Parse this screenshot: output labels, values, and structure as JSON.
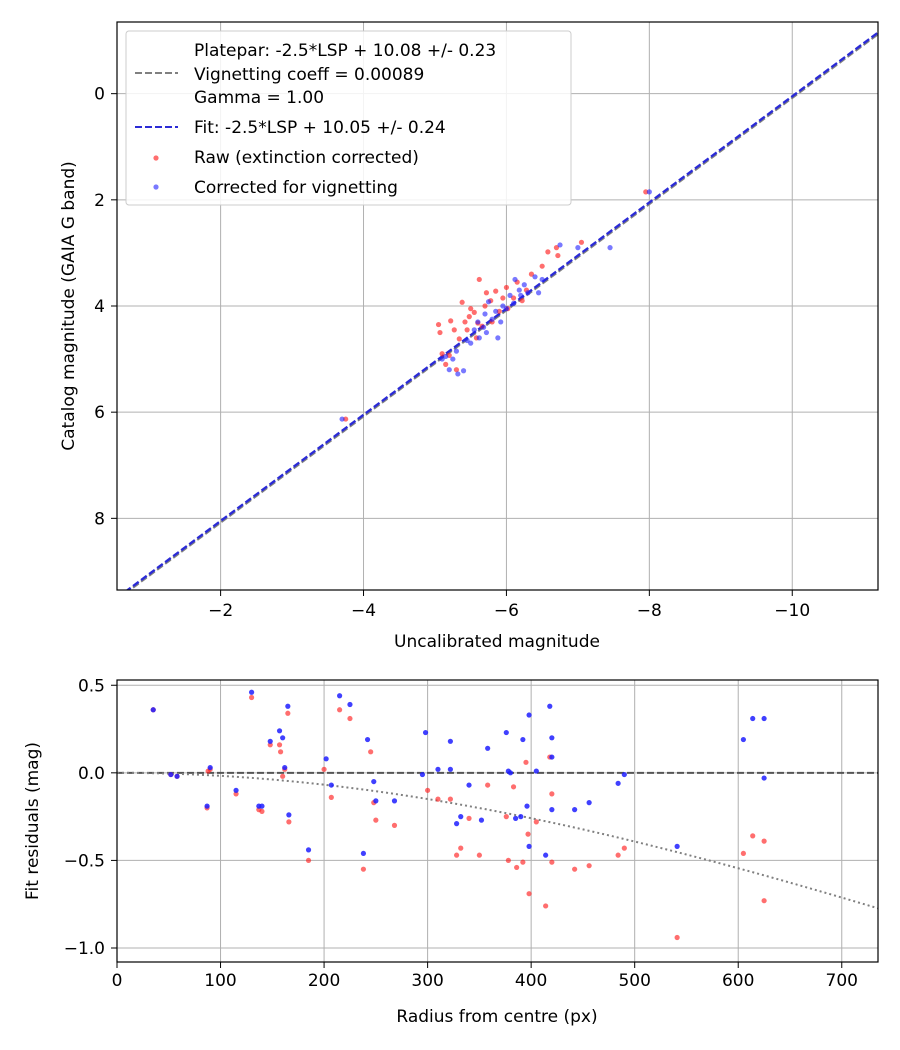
{
  "chart_data": [
    {
      "type": "scatter",
      "xlabel": "Uncalibrated magnitude",
      "ylabel": "Catalog magnitude (GAIA G band)",
      "xlim": [
        -0.55,
        -11.2
      ],
      "ylim": [
        9.35,
        -1.35
      ],
      "x_ticks": [
        -2,
        -4,
        -6,
        -8,
        -10
      ],
      "x_tick_labels": [
        "−2",
        "−4",
        "−6",
        "−8",
        "−10"
      ],
      "y_ticks": [
        0,
        2,
        4,
        6,
        8
      ],
      "y_tick_labels": [
        "0",
        "2",
        "4",
        "6",
        "8"
      ],
      "grid": true,
      "legend_position": "top-left",
      "legend": {
        "platepar_lines": [
          "Platepar: -2.5*LSP + 10.08 +/- 0.23",
          "Vignetting coeff = 0.00089",
          "Gamma = 1.00"
        ],
        "fit_label": "Fit: -2.5*LSP + 10.05 +/- 0.24",
        "raw_label": "Raw (extinction corrected)",
        "corrected_label": "Corrected for vignetting"
      },
      "colors": {
        "platepar": "#808080",
        "fit": "#2b2bd6",
        "raw": "#ff2020",
        "corrected": "#1f1fff"
      },
      "platepar_line": {
        "slope": 1.0,
        "intercept": 10.08
      },
      "fit_line": {
        "slope": 1.0,
        "intercept": 10.05
      },
      "series": [
        {
          "name": "Raw (extinction corrected)",
          "points": [
            [
              -3.75,
              6.13
            ],
            [
              -5.05,
              4.35
            ],
            [
              -5.07,
              4.5
            ],
            [
              -5.1,
              4.9
            ],
            [
              -5.15,
              5.1
            ],
            [
              -5.2,
              4.93
            ],
            [
              -5.22,
              4.28
            ],
            [
              -5.27,
              4.45
            ],
            [
              -5.3,
              5.2
            ],
            [
              -5.34,
              4.62
            ],
            [
              -5.38,
              3.93
            ],
            [
              -5.42,
              4.3
            ],
            [
              -5.45,
              4.45
            ],
            [
              -5.48,
              4.2
            ],
            [
              -5.5,
              4.05
            ],
            [
              -5.55,
              4.12
            ],
            [
              -5.58,
              4.6
            ],
            [
              -5.6,
              4.32
            ],
            [
              -5.62,
              3.5
            ],
            [
              -5.66,
              4.38
            ],
            [
              -5.7,
              4.0
            ],
            [
              -5.72,
              3.75
            ],
            [
              -5.78,
              3.9
            ],
            [
              -5.8,
              4.3
            ],
            [
              -5.85,
              3.72
            ],
            [
              -5.9,
              4.1
            ],
            [
              -5.95,
              3.85
            ],
            [
              -6.0,
              3.65
            ],
            [
              -6.02,
              4.05
            ],
            [
              -6.1,
              3.85
            ],
            [
              -6.15,
              3.55
            ],
            [
              -6.22,
              3.9
            ],
            [
              -6.28,
              3.7
            ],
            [
              -6.35,
              3.4
            ],
            [
              -6.5,
              3.25
            ],
            [
              -6.58,
              2.98
            ],
            [
              -6.7,
              2.9
            ],
            [
              -6.72,
              3.05
            ],
            [
              -7.05,
              2.8
            ],
            [
              -7.95,
              1.85
            ]
          ]
        },
        {
          "name": "Corrected for vignetting",
          "points": [
            [
              -3.7,
              6.13
            ],
            [
              -5.1,
              5.0
            ],
            [
              -5.15,
              4.95
            ],
            [
              -5.2,
              5.2
            ],
            [
              -5.25,
              5.0
            ],
            [
              -5.3,
              4.85
            ],
            [
              -5.32,
              5.28
            ],
            [
              -5.4,
              5.22
            ],
            [
              -5.45,
              4.65
            ],
            [
              -5.5,
              4.7
            ],
            [
              -5.55,
              4.45
            ],
            [
              -5.6,
              4.3
            ],
            [
              -5.62,
              4.6
            ],
            [
              -5.68,
              4.4
            ],
            [
              -5.7,
              4.15
            ],
            [
              -5.72,
              4.5
            ],
            [
              -5.75,
              3.92
            ],
            [
              -5.8,
              4.25
            ],
            [
              -5.85,
              4.1
            ],
            [
              -5.88,
              4.6
            ],
            [
              -5.92,
              4.3
            ],
            [
              -5.95,
              4.0
            ],
            [
              -6.0,
              4.05
            ],
            [
              -6.05,
              3.8
            ],
            [
              -6.1,
              3.95
            ],
            [
              -6.12,
              3.5
            ],
            [
              -6.18,
              3.7
            ],
            [
              -6.2,
              3.8
            ],
            [
              -6.25,
              3.6
            ],
            [
              -6.3,
              3.75
            ],
            [
              -6.4,
              3.45
            ],
            [
              -6.45,
              3.75
            ],
            [
              -6.5,
              3.5
            ],
            [
              -6.75,
              2.85
            ],
            [
              -7.0,
              2.9
            ],
            [
              -7.45,
              2.9
            ],
            [
              -8.0,
              1.85
            ]
          ]
        }
      ]
    },
    {
      "type": "scatter",
      "xlabel": "Radius from centre (px)",
      "ylabel": "Fit residuals (mag)",
      "xlim": [
        0,
        735
      ],
      "ylim": [
        -1.08,
        0.53
      ],
      "x_ticks": [
        0,
        100,
        200,
        300,
        400,
        500,
        600,
        700
      ],
      "x_tick_labels": [
        "0",
        "100",
        "200",
        "300",
        "400",
        "500",
        "600",
        "700"
      ],
      "y_ticks": [
        0.5,
        0.0,
        -0.5,
        -1.0
      ],
      "y_tick_labels": [
        "0.5",
        "0.0",
        "−0.5",
        "−1.0"
      ],
      "grid": true,
      "zero_line": 0.0,
      "vignetting_curve": {
        "coeff": 0.00089
      },
      "colors": {
        "raw": "#ff2020",
        "corrected": "#1f1fff",
        "zero": "#555555",
        "curve": "#808080"
      },
      "series": [
        {
          "name": "Raw (extinction corrected)",
          "points": [
            [
              35,
              0.36
            ],
            [
              52,
              -0.01
            ],
            [
              58,
              -0.02
            ],
            [
              87,
              -0.2
            ],
            [
              88,
              0.01
            ],
            [
              90,
              0.02
            ],
            [
              115,
              -0.12
            ],
            [
              130,
              0.43
            ],
            [
              137,
              -0.21
            ],
            [
              140,
              -0.22
            ],
            [
              148,
              0.16
            ],
            [
              157,
              0.16
            ],
            [
              158,
              0.12
            ],
            [
              160,
              -0.02
            ],
            [
              162,
              0.02
            ],
            [
              165,
              0.34
            ],
            [
              166,
              -0.28
            ],
            [
              185,
              -0.5
            ],
            [
              200,
              0.02
            ],
            [
              207,
              -0.14
            ],
            [
              215,
              0.36
            ],
            [
              225,
              0.31
            ],
            [
              238,
              -0.55
            ],
            [
              245,
              0.12
            ],
            [
              248,
              -0.17
            ],
            [
              250,
              -0.27
            ],
            [
              268,
              -0.3
            ],
            [
              300,
              -0.1
            ],
            [
              310,
              -0.15
            ],
            [
              322,
              -0.15
            ],
            [
              328,
              -0.47
            ],
            [
              332,
              -0.43
            ],
            [
              340,
              -0.26
            ],
            [
              350,
              -0.47
            ],
            [
              358,
              -0.07
            ],
            [
              376,
              -0.25
            ],
            [
              378,
              -0.5
            ],
            [
              383,
              -0.08
            ],
            [
              386,
              -0.54
            ],
            [
              392,
              -0.51
            ],
            [
              395,
              0.06
            ],
            [
              397,
              -0.35
            ],
            [
              398,
              -0.69
            ],
            [
              405,
              -0.28
            ],
            [
              414,
              -0.76
            ],
            [
              418,
              0.09
            ],
            [
              420,
              -0.12
            ],
            [
              420,
              -0.51
            ],
            [
              442,
              -0.55
            ],
            [
              456,
              -0.53
            ],
            [
              484,
              -0.47
            ],
            [
              490,
              -0.43
            ],
            [
              541,
              -0.94
            ],
            [
              605,
              -0.46
            ],
            [
              614,
              -0.36
            ],
            [
              625,
              -0.39
            ],
            [
              625,
              -0.73
            ]
          ]
        },
        {
          "name": "Corrected for vignetting",
          "points": [
            [
              35,
              0.36
            ],
            [
              52,
              -0.01
            ],
            [
              58,
              -0.02
            ],
            [
              87,
              -0.19
            ],
            [
              90,
              0.03
            ],
            [
              115,
              -0.1
            ],
            [
              130,
              0.46
            ],
            [
              137,
              -0.19
            ],
            [
              140,
              -0.19
            ],
            [
              148,
              0.18
            ],
            [
              157,
              0.24
            ],
            [
              160,
              0.2
            ],
            [
              162,
              0.03
            ],
            [
              165,
              0.38
            ],
            [
              166,
              -0.24
            ],
            [
              185,
              -0.44
            ],
            [
              202,
              0.08
            ],
            [
              207,
              -0.07
            ],
            [
              215,
              0.44
            ],
            [
              225,
              0.39
            ],
            [
              238,
              -0.46
            ],
            [
              242,
              0.19
            ],
            [
              248,
              -0.05
            ],
            [
              250,
              -0.16
            ],
            [
              268,
              -0.16
            ],
            [
              295,
              -0.01
            ],
            [
              298,
              0.23
            ],
            [
              310,
              0.02
            ],
            [
              322,
              0.18
            ],
            [
              322,
              0.02
            ],
            [
              328,
              -0.29
            ],
            [
              332,
              -0.25
            ],
            [
              340,
              -0.07
            ],
            [
              352,
              -0.27
            ],
            [
              358,
              0.14
            ],
            [
              376,
              0.23
            ],
            [
              378,
              0.01
            ],
            [
              380,
              0.0
            ],
            [
              385,
              -0.26
            ],
            [
              390,
              -0.25
            ],
            [
              392,
              0.19
            ],
            [
              396,
              -0.19
            ],
            [
              398,
              0.33
            ],
            [
              398,
              -0.42
            ],
            [
              405,
              0.01
            ],
            [
              414,
              -0.47
            ],
            [
              418,
              0.38
            ],
            [
              420,
              0.2
            ],
            [
              420,
              0.09
            ],
            [
              420,
              -0.21
            ],
            [
              442,
              -0.21
            ],
            [
              456,
              -0.17
            ],
            [
              484,
              -0.06
            ],
            [
              490,
              -0.01
            ],
            [
              541,
              -0.42
            ],
            [
              605,
              0.19
            ],
            [
              614,
              0.31
            ],
            [
              625,
              0.31
            ],
            [
              625,
              -0.03
            ]
          ]
        }
      ]
    }
  ]
}
